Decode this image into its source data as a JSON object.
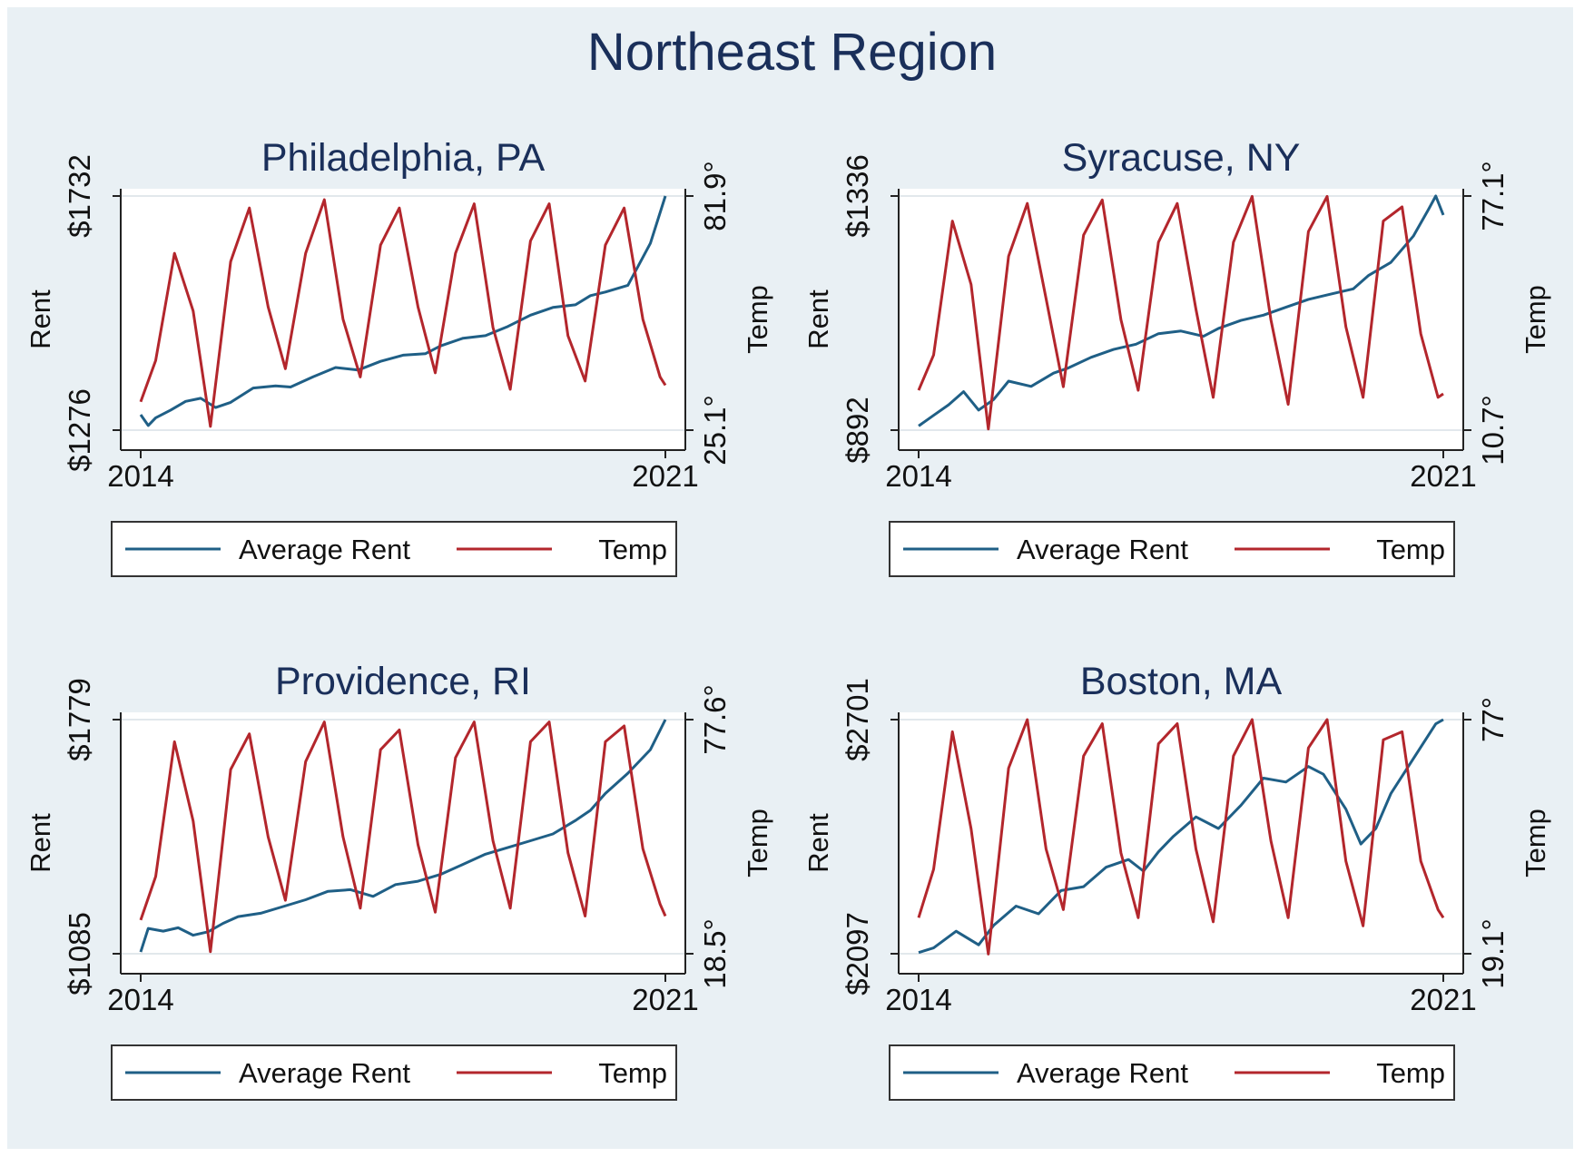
{
  "figure": {
    "title": "Northeast Region"
  },
  "chart_data": [
    {
      "type": "line",
      "title": "Philadelphia, PA",
      "xlabel": "",
      "ylabel": "Rent",
      "y2label": "Temp",
      "x_ticks": [
        "2014",
        "2021"
      ],
      "x_range": [
        2014,
        2021
      ],
      "y_ticks": [
        "$1276",
        "$1732"
      ],
      "ylim": [
        1276,
        1732
      ],
      "y2_ticks": [
        "25.1°",
        "81.9°"
      ],
      "y2lim": [
        25.1,
        81.9
      ],
      "legend": [
        "Average Rent",
        "Temp"
      ],
      "series": [
        {
          "name": "Average Rent",
          "x": [
            2014.0,
            2014.1,
            2014.2,
            2014.4,
            2014.6,
            2014.8,
            2015.0,
            2015.2,
            2015.5,
            2015.8,
            2016.0,
            2016.3,
            2016.6,
            2016.9,
            2017.2,
            2017.5,
            2017.8,
            2018.0,
            2018.3,
            2018.6,
            2018.9,
            2019.2,
            2019.5,
            2019.8,
            2020.0,
            2020.2,
            2020.5,
            2020.8,
            2021.0
          ],
          "values": [
            1306,
            1285,
            1300,
            1315,
            1332,
            1338,
            1320,
            1330,
            1358,
            1362,
            1360,
            1380,
            1398,
            1393,
            1410,
            1422,
            1425,
            1440,
            1455,
            1460,
            1478,
            1500,
            1515,
            1520,
            1538,
            1545,
            1558,
            1640,
            1732
          ]
        },
        {
          "name": "Temp",
          "x": [
            2014.0,
            2014.2,
            2014.45,
            2014.7,
            2014.93,
            2015.2,
            2015.45,
            2015.7,
            2015.93,
            2016.2,
            2016.45,
            2016.7,
            2016.93,
            2017.2,
            2017.45,
            2017.7,
            2017.93,
            2018.2,
            2018.45,
            2018.7,
            2018.93,
            2019.2,
            2019.45,
            2019.7,
            2019.93,
            2020.2,
            2020.45,
            2020.7,
            2020.93,
            2021.0
          ],
          "values": [
            32,
            42,
            68,
            54,
            26,
            66,
            79,
            55,
            40,
            68,
            81,
            52,
            38,
            70,
            79,
            55,
            39,
            68,
            80,
            50,
            35,
            71,
            80,
            48,
            37,
            70,
            79,
            52,
            38,
            36
          ]
        }
      ]
    },
    {
      "type": "line",
      "title": "Syracuse, NY",
      "xlabel": "",
      "ylabel": "Rent",
      "y2label": "Temp",
      "x_ticks": [
        "2014",
        "2021"
      ],
      "x_range": [
        2014,
        2021
      ],
      "y_ticks": [
        "$892",
        "$1336"
      ],
      "ylim": [
        892,
        1336
      ],
      "y2_ticks": [
        "10.7°",
        "77.1°"
      ],
      "y2lim": [
        10.7,
        77.1
      ],
      "legend": [
        "Average Rent",
        "Temp"
      ],
      "series": [
        {
          "name": "Average Rent",
          "x": [
            2014.0,
            2014.2,
            2014.4,
            2014.6,
            2014.8,
            2015.0,
            2015.2,
            2015.5,
            2015.8,
            2016.0,
            2016.3,
            2016.6,
            2016.9,
            2017.2,
            2017.5,
            2017.8,
            2018.0,
            2018.3,
            2018.6,
            2018.9,
            2019.2,
            2019.5,
            2019.8,
            2020.0,
            2020.3,
            2020.6,
            2020.8,
            2020.9,
            2021.0
          ],
          "values": [
            900,
            920,
            940,
            965,
            930,
            950,
            985,
            975,
            1000,
            1010,
            1030,
            1045,
            1055,
            1075,
            1080,
            1070,
            1085,
            1100,
            1110,
            1125,
            1140,
            1150,
            1160,
            1185,
            1210,
            1260,
            1310,
            1336,
            1300
          ]
        },
        {
          "name": "Temp",
          "x": [
            2014.0,
            2014.2,
            2014.45,
            2014.7,
            2014.93,
            2015.2,
            2015.45,
            2015.7,
            2015.93,
            2016.2,
            2016.45,
            2016.7,
            2016.93,
            2017.2,
            2017.45,
            2017.7,
            2017.93,
            2018.2,
            2018.45,
            2018.7,
            2018.93,
            2019.2,
            2019.45,
            2019.7,
            2019.93,
            2020.2,
            2020.45,
            2020.7,
            2020.93,
            2021.0
          ],
          "values": [
            22,
            32,
            70,
            52,
            11,
            60,
            75,
            48,
            23,
            66,
            76,
            42,
            22,
            64,
            75,
            45,
            20,
            64,
            77,
            42,
            18,
            67,
            77,
            40,
            20,
            70,
            74,
            38,
            20,
            21
          ]
        }
      ]
    },
    {
      "type": "line",
      "title": "Providence, RI",
      "xlabel": "",
      "ylabel": "Rent",
      "y2label": "Temp",
      "x_ticks": [
        "2014",
        "2021"
      ],
      "x_range": [
        2014,
        2021
      ],
      "y_ticks": [
        "$1085",
        "$1779"
      ],
      "ylim": [
        1085,
        1779
      ],
      "y2_ticks": [
        "18.5°",
        "77.6°"
      ],
      "y2lim": [
        18.5,
        77.6
      ],
      "legend": [
        "Average Rent",
        "Temp"
      ],
      "series": [
        {
          "name": "Average Rent",
          "x": [
            2014.0,
            2014.1,
            2014.3,
            2014.5,
            2014.7,
            2014.9,
            2015.1,
            2015.3,
            2015.6,
            2015.9,
            2016.2,
            2016.5,
            2016.8,
            2017.1,
            2017.4,
            2017.7,
            2018.0,
            2018.3,
            2018.6,
            2018.9,
            2019.2,
            2019.5,
            2019.8,
            2020.0,
            2020.2,
            2020.5,
            2020.8,
            2021.0
          ],
          "values": [
            1090,
            1160,
            1152,
            1162,
            1140,
            1150,
            1175,
            1195,
            1205,
            1225,
            1245,
            1270,
            1275,
            1255,
            1290,
            1300,
            1320,
            1350,
            1380,
            1400,
            1420,
            1440,
            1480,
            1510,
            1560,
            1620,
            1690,
            1779
          ]
        },
        {
          "name": "Temp",
          "x": [
            2014.0,
            2014.2,
            2014.45,
            2014.7,
            2014.93,
            2015.2,
            2015.45,
            2015.7,
            2015.93,
            2016.2,
            2016.45,
            2016.7,
            2016.93,
            2017.2,
            2017.45,
            2017.7,
            2017.93,
            2018.2,
            2018.45,
            2018.7,
            2018.93,
            2019.2,
            2019.45,
            2019.7,
            2019.93,
            2020.2,
            2020.45,
            2020.7,
            2020.93,
            2021.0
          ],
          "values": [
            27,
            38,
            72,
            52,
            19,
            65,
            74,
            48,
            32,
            67,
            77,
            48,
            30,
            70,
            75,
            46,
            29,
            68,
            77,
            47,
            30,
            72,
            77,
            44,
            28,
            72,
            76,
            45,
            31,
            28
          ]
        }
      ]
    },
    {
      "type": "line",
      "title": "Boston, MA",
      "xlabel": "",
      "ylabel": "Rent",
      "y2label": "Temp",
      "x_ticks": [
        "2014",
        "2021"
      ],
      "x_range": [
        2014,
        2021
      ],
      "y_ticks": [
        "$2097",
        "$2701"
      ],
      "ylim": [
        2097,
        2701
      ],
      "y2_ticks": [
        "19.1°",
        "77°"
      ],
      "y2lim": [
        19.1,
        77
      ],
      "legend": [
        "Average Rent",
        "Temp"
      ],
      "series": [
        {
          "name": "Average Rent",
          "x": [
            2014.0,
            2014.2,
            2014.5,
            2014.8,
            2015.0,
            2015.3,
            2015.6,
            2015.9,
            2016.2,
            2016.5,
            2016.8,
            2017.0,
            2017.2,
            2017.4,
            2017.7,
            2018.0,
            2018.3,
            2018.6,
            2018.9,
            2019.2,
            2019.4,
            2019.7,
            2019.9,
            2020.1,
            2020.3,
            2020.6,
            2020.9,
            2021.0
          ],
          "values": [
            2100,
            2112,
            2155,
            2120,
            2170,
            2220,
            2200,
            2260,
            2270,
            2320,
            2340,
            2310,
            2360,
            2400,
            2450,
            2420,
            2480,
            2550,
            2540,
            2580,
            2560,
            2470,
            2380,
            2420,
            2510,
            2600,
            2690,
            2701
          ]
        },
        {
          "name": "Temp",
          "x": [
            2014.0,
            2014.2,
            2014.45,
            2014.7,
            2014.93,
            2015.2,
            2015.45,
            2015.7,
            2015.93,
            2016.2,
            2016.45,
            2016.7,
            2016.93,
            2017.2,
            2017.45,
            2017.7,
            2017.93,
            2018.2,
            2018.45,
            2018.7,
            2018.93,
            2019.2,
            2019.45,
            2019.7,
            2019.93,
            2020.2,
            2020.45,
            2020.7,
            2020.93,
            2021.0
          ],
          "values": [
            28,
            40,
            74,
            50,
            19,
            65,
            77,
            45,
            30,
            68,
            76,
            44,
            28,
            71,
            76,
            45,
            27,
            68,
            77,
            47,
            28,
            70,
            77,
            42,
            26,
            72,
            74,
            42,
            30,
            28
          ]
        }
      ]
    }
  ]
}
